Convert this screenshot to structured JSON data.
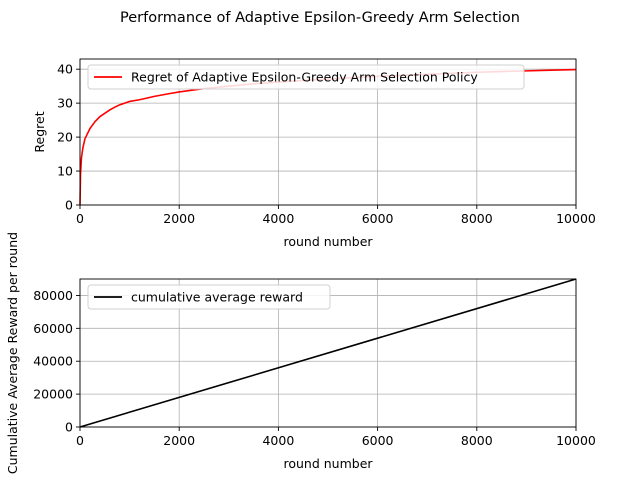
{
  "figure": {
    "title": "Performance of Adaptive Epsilon-Greedy Arm Selection"
  },
  "chart_data": [
    {
      "type": "line",
      "title": "",
      "xlabel": "round number",
      "ylabel": "Regret",
      "xlim": [
        0,
        10000
      ],
      "ylim": [
        0,
        43
      ],
      "xticks": [
        0,
        2000,
        4000,
        6000,
        8000,
        10000
      ],
      "yticks": [
        0,
        10,
        20,
        30,
        40
      ],
      "grid": true,
      "legend_position": "top-left",
      "series": [
        {
          "name": "Regret of Adaptive Epsilon-Greedy Arm Selection Policy",
          "color": "#ff0000",
          "x": [
            0,
            10,
            30,
            60,
            100,
            150,
            200,
            300,
            400,
            500,
            600,
            700,
            800,
            1000,
            1200,
            1500,
            1800,
            2000,
            2500,
            3000,
            3500,
            4000,
            4500,
            5000,
            5500,
            6000,
            6500,
            7000,
            7500,
            8000,
            8500,
            9000,
            9500,
            10000
          ],
          "y": [
            0,
            9,
            14,
            17,
            19.5,
            21,
            22.5,
            24.5,
            26,
            27,
            28,
            28.8,
            29.5,
            30.5,
            31,
            32,
            32.8,
            33.3,
            34.3,
            35,
            35.7,
            36.2,
            36.7,
            37.1,
            37.5,
            37.9,
            38.2,
            38.5,
            38.8,
            39.1,
            39.3,
            39.5,
            39.7,
            39.9
          ]
        }
      ]
    },
    {
      "type": "line",
      "title": "",
      "xlabel": "round number",
      "ylabel": "Cumulative Average Reward per round",
      "xlim": [
        0,
        10000
      ],
      "ylim": [
        0,
        90000
      ],
      "xticks": [
        0,
        2000,
        4000,
        6000,
        8000,
        10000
      ],
      "yticks": [
        0,
        20000,
        40000,
        60000,
        80000
      ],
      "grid": true,
      "legend_position": "top-left",
      "series": [
        {
          "name": "cumulative average reward",
          "color": "#000000",
          "x": [
            0,
            10000
          ],
          "y": [
            0,
            90000
          ]
        }
      ]
    }
  ]
}
